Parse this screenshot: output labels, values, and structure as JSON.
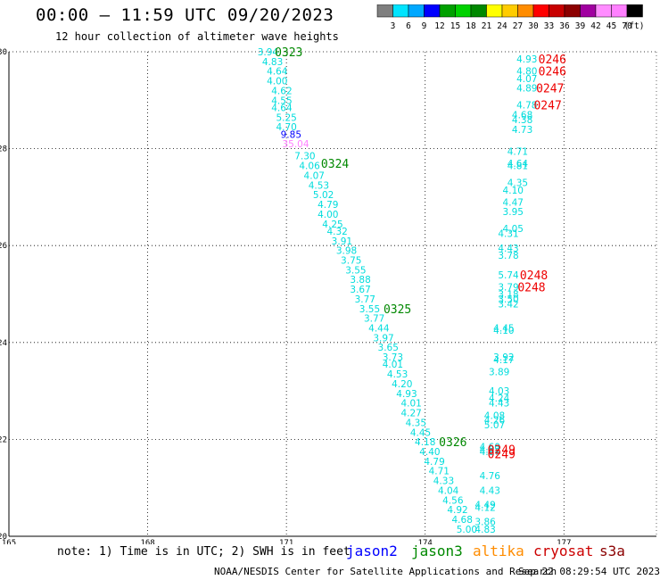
{
  "header": {
    "title": "00:00 – 11:59 UTC 09/20/2023",
    "subtitle": "12 hour collection of altimeter wave heights"
  },
  "colorbar": {
    "unit": "(ft)",
    "colors": [
      "#7f7f7f",
      "#00e4ff",
      "#00a8ff",
      "#0000ff",
      "#00a000",
      "#00d200",
      "#008800",
      "#ffff00",
      "#ffcc00",
      "#ff8c00",
      "#ff0000",
      "#c80000",
      "#8c0000",
      "#a000a0",
      "#ff8cff",
      "#ff80ff",
      "#000000"
    ],
    "labels": [
      "3",
      "6",
      "9",
      "12",
      "15",
      "18",
      "21",
      "24",
      "27",
      "30",
      "33",
      "36",
      "39",
      "42",
      "45",
      "70"
    ]
  },
  "footer": {
    "note": "note: 1) Time is in UTC; 2) SWH is in feet",
    "legend": [
      {
        "name": "jason2",
        "color": "#0000ff"
      },
      {
        "name": "jason3",
        "color": "#008800"
      },
      {
        "name": "altika",
        "color": "#ff8c00"
      },
      {
        "name": "cryosat",
        "color": "#cc0000"
      },
      {
        "name": "s3a",
        "color": "#8b0000"
      }
    ],
    "credit_left": "NOAA/NESDIS Center for Satellite Applications and Research",
    "credit_right": "Sep 22 08:29:54 UTC 2023"
  },
  "chart_data": {
    "type": "scatter",
    "xlim": [
      165,
      179
    ],
    "ylim": [
      20,
      30
    ],
    "xticks": [
      "165",
      "168",
      "171",
      "174",
      "177"
    ],
    "yticks": [
      "20",
      "22",
      "24",
      "26",
      "28",
      "30"
    ],
    "grid": true,
    "track_a": [
      {
        "x": 170.6,
        "y": 30.0,
        "label": "3.94",
        "color": "#00dcdc"
      },
      {
        "x": 170.7,
        "y": 29.8,
        "label": "4.83",
        "color": "#00dcdc"
      },
      {
        "x": 170.8,
        "y": 29.6,
        "label": "4.64",
        "color": "#00dcdc"
      },
      {
        "x": 170.8,
        "y": 29.4,
        "label": "4.00",
        "color": "#00dcdc"
      },
      {
        "x": 170.9,
        "y": 29.2,
        "label": "4.62",
        "color": "#00dcdc"
      },
      {
        "x": 170.9,
        "y": 29.0,
        "label": "4.55",
        "color": "#00dcdc"
      },
      {
        "x": 170.9,
        "y": 28.85,
        "label": "4.64",
        "color": "#00dcdc"
      },
      {
        "x": 171.0,
        "y": 28.65,
        "label": "5.25",
        "color": "#00dcdc"
      },
      {
        "x": 171.0,
        "y": 28.45,
        "label": "4.70",
        "color": "#00dcdc"
      },
      {
        "x": 171.1,
        "y": 28.3,
        "label": "9.85",
        "color": "#0000ff"
      },
      {
        "x": 171.2,
        "y": 28.1,
        "label": "35.04",
        "color": "#ff80ff"
      },
      {
        "x": 171.4,
        "y": 27.85,
        "label": "7.30",
        "color": "#00dcdc"
      },
      {
        "x": 171.5,
        "y": 27.65,
        "label": "4.06",
        "color": "#00dcdc"
      },
      {
        "x": 171.6,
        "y": 27.45,
        "label": "4.07",
        "color": "#00dcdc"
      },
      {
        "x": 171.7,
        "y": 27.25,
        "label": "4.53",
        "color": "#00dcdc"
      },
      {
        "x": 171.8,
        "y": 27.05,
        "label": "5.02",
        "color": "#00dcdc"
      },
      {
        "x": 171.9,
        "y": 26.85,
        "label": "4.79",
        "color": "#00dcdc"
      },
      {
        "x": 171.9,
        "y": 26.65,
        "label": "4.00",
        "color": "#00dcdc"
      },
      {
        "x": 172.0,
        "y": 26.45,
        "label": "4.25",
        "color": "#00dcdc"
      },
      {
        "x": 172.1,
        "y": 26.3,
        "label": "4.32",
        "color": "#00dcdc"
      },
      {
        "x": 172.2,
        "y": 26.1,
        "label": "3.91",
        "color": "#00dcdc"
      },
      {
        "x": 172.3,
        "y": 25.9,
        "label": "3.98",
        "color": "#00dcdc"
      },
      {
        "x": 172.4,
        "y": 25.7,
        "label": "3.75",
        "color": "#00dcdc"
      },
      {
        "x": 172.5,
        "y": 25.5,
        "label": "3.55",
        "color": "#00dcdc"
      },
      {
        "x": 172.6,
        "y": 25.3,
        "label": "3.88",
        "color": "#00dcdc"
      },
      {
        "x": 172.6,
        "y": 25.1,
        "label": "3.67",
        "color": "#00dcdc"
      },
      {
        "x": 172.7,
        "y": 24.9,
        "label": "3.77",
        "color": "#00dcdc"
      },
      {
        "x": 172.8,
        "y": 24.7,
        "label": "3.55",
        "color": "#00dcdc"
      },
      {
        "x": 172.9,
        "y": 24.5,
        "label": "3.77",
        "color": "#00dcdc"
      },
      {
        "x": 173.0,
        "y": 24.3,
        "label": "4.44",
        "color": "#00dcdc"
      },
      {
        "x": 173.1,
        "y": 24.1,
        "label": "3.97",
        "color": "#00dcdc"
      },
      {
        "x": 173.2,
        "y": 23.9,
        "label": "3.65",
        "color": "#00dcdc"
      },
      {
        "x": 173.3,
        "y": 23.7,
        "label": "3.73",
        "color": "#00dcdc"
      },
      {
        "x": 173.3,
        "y": 23.55,
        "label": "4.01",
        "color": "#00dcdc"
      },
      {
        "x": 173.4,
        "y": 23.35,
        "label": "4.53",
        "color": "#00dcdc"
      },
      {
        "x": 173.5,
        "y": 23.15,
        "label": "4.20",
        "color": "#00dcdc"
      },
      {
        "x": 173.6,
        "y": 22.95,
        "label": "4.93",
        "color": "#00dcdc"
      },
      {
        "x": 173.7,
        "y": 22.75,
        "label": "4.01",
        "color": "#00dcdc"
      },
      {
        "x": 173.7,
        "y": 22.55,
        "label": "4.27",
        "color": "#00dcdc"
      },
      {
        "x": 173.8,
        "y": 22.35,
        "label": "4.35",
        "color": "#00dcdc"
      },
      {
        "x": 173.9,
        "y": 22.15,
        "label": "4.45",
        "color": "#00dcdc"
      },
      {
        "x": 174.0,
        "y": 21.95,
        "label": "4.18",
        "color": "#00dcdc"
      },
      {
        "x": 174.1,
        "y": 21.75,
        "label": "4.40",
        "color": "#00dcdc"
      },
      {
        "x": 174.2,
        "y": 21.55,
        "label": "4.79",
        "color": "#00dcdc"
      },
      {
        "x": 174.3,
        "y": 21.35,
        "label": "4.71",
        "color": "#00dcdc"
      },
      {
        "x": 174.4,
        "y": 21.15,
        "label": "4.33",
        "color": "#00dcdc"
      },
      {
        "x": 174.5,
        "y": 20.95,
        "label": "4.04",
        "color": "#00dcdc"
      },
      {
        "x": 174.6,
        "y": 20.75,
        "label": "4.56",
        "color": "#00dcdc"
      },
      {
        "x": 174.7,
        "y": 20.55,
        "label": "4.92",
        "color": "#00dcdc"
      },
      {
        "x": 174.8,
        "y": 20.35,
        "label": "4.68",
        "color": "#00dcdc"
      },
      {
        "x": 174.9,
        "y": 20.15,
        "label": "5.00",
        "color": "#00dcdc"
      }
    ],
    "track_b": [
      {
        "x": 176.2,
        "y": 29.85,
        "label": "4.93"
      },
      {
        "x": 176.2,
        "y": 29.6,
        "label": "4.80"
      },
      {
        "x": 176.2,
        "y": 29.45,
        "label": "4.07"
      },
      {
        "x": 176.2,
        "y": 29.25,
        "label": "4.89"
      },
      {
        "x": 176.2,
        "y": 28.9,
        "label": "4.78"
      },
      {
        "x": 176.1,
        "y": 28.7,
        "label": "4.68"
      },
      {
        "x": 176.1,
        "y": 28.6,
        "label": "4.38"
      },
      {
        "x": 176.1,
        "y": 28.4,
        "label": "4.73"
      },
      {
        "x": 176.0,
        "y": 27.95,
        "label": "4.71"
      },
      {
        "x": 176.0,
        "y": 27.7,
        "label": "4.64"
      },
      {
        "x": 176.0,
        "y": 27.65,
        "label": "4.81"
      },
      {
        "x": 176.0,
        "y": 27.3,
        "label": "4.35"
      },
      {
        "x": 175.9,
        "y": 27.15,
        "label": "4.10"
      },
      {
        "x": 175.9,
        "y": 26.9,
        "label": "4.47"
      },
      {
        "x": 175.9,
        "y": 26.7,
        "label": "3.95"
      },
      {
        "x": 175.9,
        "y": 26.35,
        "label": "4.05"
      },
      {
        "x": 175.8,
        "y": 26.25,
        "label": "4.31"
      },
      {
        "x": 175.8,
        "y": 25.95,
        "label": "4.43"
      },
      {
        "x": 175.8,
        "y": 25.8,
        "label": "3.78"
      },
      {
        "x": 175.8,
        "y": 25.4,
        "label": "5.74"
      },
      {
        "x": 175.8,
        "y": 25.15,
        "label": "3.79"
      },
      {
        "x": 175.8,
        "y": 25.0,
        "label": "3.18"
      },
      {
        "x": 175.8,
        "y": 24.9,
        "label": "3.50"
      },
      {
        "x": 175.8,
        "y": 24.8,
        "label": "3.42"
      },
      {
        "x": 175.7,
        "y": 24.3,
        "label": "4.45"
      },
      {
        "x": 175.7,
        "y": 24.25,
        "label": "4.10"
      },
      {
        "x": 175.7,
        "y": 23.7,
        "label": "3.92"
      },
      {
        "x": 175.7,
        "y": 23.65,
        "label": "4.17"
      },
      {
        "x": 175.6,
        "y": 23.4,
        "label": "3.89"
      },
      {
        "x": 175.6,
        "y": 23.0,
        "label": "4.03"
      },
      {
        "x": 175.6,
        "y": 22.85,
        "label": "4.24"
      },
      {
        "x": 175.6,
        "y": 22.75,
        "label": "4.43"
      },
      {
        "x": 175.5,
        "y": 22.5,
        "label": "4.08"
      },
      {
        "x": 175.5,
        "y": 22.4,
        "label": "4.26"
      },
      {
        "x": 175.5,
        "y": 22.3,
        "label": "5.07"
      },
      {
        "x": 175.4,
        "y": 21.85,
        "label": "4.60"
      },
      {
        "x": 175.4,
        "y": 21.8,
        "label": "4.82"
      },
      {
        "x": 175.4,
        "y": 21.75,
        "label": "4.87"
      },
      {
        "x": 175.4,
        "y": 21.25,
        "label": "4.76"
      },
      {
        "x": 175.4,
        "y": 20.95,
        "label": "4.43"
      },
      {
        "x": 175.3,
        "y": 20.65,
        "label": "4.49"
      },
      {
        "x": 175.3,
        "y": 20.6,
        "label": "4.12"
      },
      {
        "x": 175.3,
        "y": 20.3,
        "label": "3.86"
      },
      {
        "x": 175.3,
        "y": 20.15,
        "label": "4.83"
      }
    ],
    "time_labels_green": [
      {
        "x": 171.05,
        "y": 30.0,
        "label": "0323"
      },
      {
        "x": 172.05,
        "y": 27.7,
        "label": "0324"
      },
      {
        "x": 173.4,
        "y": 24.7,
        "label": "0325"
      },
      {
        "x": 174.6,
        "y": 21.95,
        "label": "0326"
      }
    ],
    "time_labels_red": [
      {
        "x": 176.75,
        "y": 29.85,
        "label": "0246"
      },
      {
        "x": 176.75,
        "y": 29.6,
        "label": "0246"
      },
      {
        "x": 176.7,
        "y": 29.25,
        "label": "0247"
      },
      {
        "x": 176.65,
        "y": 28.9,
        "label": "0247"
      },
      {
        "x": 176.35,
        "y": 25.4,
        "label": "0248"
      },
      {
        "x": 176.3,
        "y": 25.15,
        "label": "0248"
      },
      {
        "x": 175.65,
        "y": 21.8,
        "label": "0249"
      },
      {
        "x": 175.65,
        "y": 21.7,
        "label": "0249"
      }
    ]
  }
}
